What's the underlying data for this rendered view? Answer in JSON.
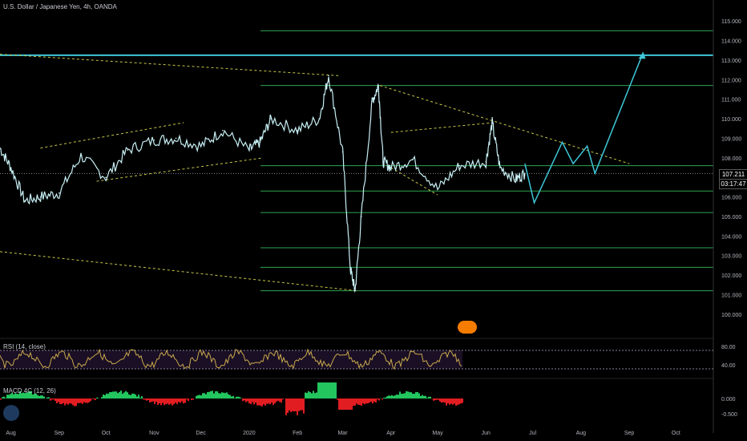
{
  "header": {
    "title": "U.S. Dollar / Japanese Yen, 4h, OANDA"
  },
  "badges": {
    "last_price": "107.211",
    "countdown": "03:17:47"
  },
  "indicators": {
    "rsi_label": "RSI (14, close)",
    "macd_label": "MACD 4C (12, 26)"
  },
  "colors": {
    "candle": "#c8f0f5",
    "level_line": "#2ea44f",
    "trend_line": "#c8c847",
    "projection": "#3fc7d8",
    "rsi_line": "#c9a84c",
    "macd_up": "#22c55e",
    "macd_down": "#e11d21",
    "logo": "#1e3a5f"
  },
  "chart_data": {
    "type": "line",
    "title": "U.S. Dollar / Japanese Yen, 4h, OANDA",
    "x": [
      "2019-07-25",
      "2019-08-01",
      "2019-08-10",
      "2019-08-20",
      "2019-09-01",
      "2019-09-15",
      "2019-10-01",
      "2019-10-15",
      "2019-11-01",
      "2019-11-15",
      "2019-12-01",
      "2019-12-15",
      "2020-01-01",
      "2020-01-08",
      "2020-01-15",
      "2020-02-01",
      "2020-02-15",
      "2020-02-21",
      "2020-03-01",
      "2020-03-06",
      "2020-03-09",
      "2020-03-13",
      "2020-03-20",
      "2020-03-24",
      "2020-03-27",
      "2020-04-01",
      "2020-04-15",
      "2020-05-01",
      "2020-05-15",
      "2020-06-01",
      "2020-06-05",
      "2020-06-10",
      "2020-06-20",
      "2020-06-26"
    ],
    "y": [
      108.5,
      107.5,
      105.8,
      106.0,
      106.2,
      108.1,
      107.0,
      108.4,
      108.9,
      109.0,
      108.6,
      109.4,
      108.4,
      108.8,
      110.0,
      109.4,
      110.0,
      112.2,
      108.3,
      102.3,
      101.2,
      105.0,
      110.9,
      111.7,
      107.8,
      107.5,
      107.9,
      106.4,
      107.6,
      107.8,
      109.8,
      107.5,
      106.9,
      107.2
    ],
    "y_axis_ticks": [
      "115.000",
      "114.000",
      "113.000",
      "112.000",
      "111.000",
      "110.000",
      "109.000",
      "108.000",
      "107.000",
      "106.000",
      "105.000",
      "104.000",
      "103.000",
      "102.000",
      "101.000",
      "100.000"
    ],
    "ylim": [
      99.5,
      115.5
    ],
    "x_axis_ticks": [
      "Aug",
      "Sep",
      "Oct",
      "Nov",
      "Dec",
      "2020",
      "Feb",
      "Mar",
      "Apr",
      "May",
      "Jun",
      "Jul",
      "Aug",
      "Sep",
      "Oct"
    ],
    "horizontal_levels": [
      114.5,
      113.25,
      111.7,
      107.6,
      106.3,
      105.2,
      103.4,
      102.4,
      101.2
    ],
    "projection_path": [
      [
        "2020-06-26",
        107.7
      ],
      [
        "2020-07-02",
        105.7
      ],
      [
        "2020-07-20",
        108.8
      ],
      [
        "2020-07-27",
        107.7
      ],
      [
        "2020-08-05",
        108.6
      ],
      [
        "2020-08-10",
        107.2
      ],
      [
        "2020-09-10",
        113.4
      ]
    ],
    "rsi": {
      "name": "RSI (14, close)",
      "ticks": [
        "80.00",
        "40.00"
      ],
      "upper": 70,
      "lower": 30
    },
    "macd": {
      "name": "MACD 4C (12, 26)",
      "ticks": [
        "0.000",
        "-0.500"
      ]
    },
    "grid": false
  }
}
